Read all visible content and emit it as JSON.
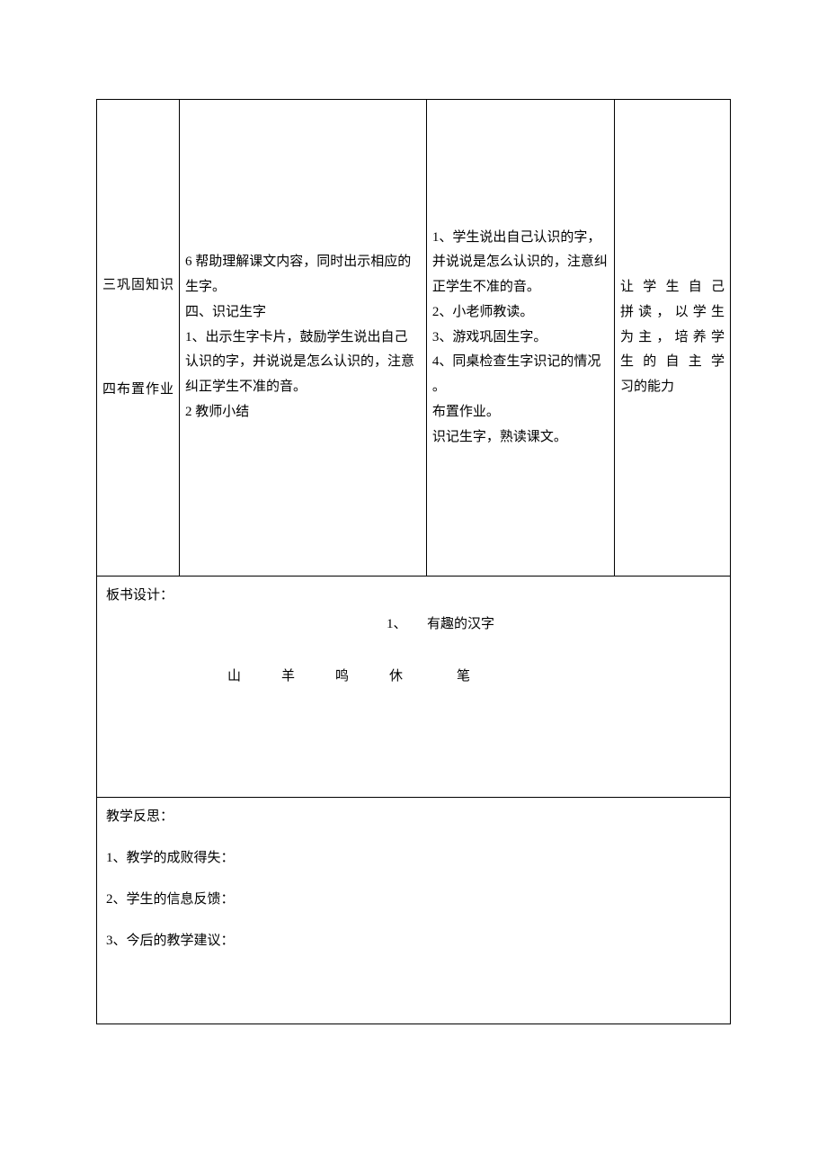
{
  "table": {
    "col1": {
      "section3": "三巩固知识",
      "section4": "四布置作业"
    },
    "col2": {
      "line1": "6 帮助理解课文内容，同时出示相应的生字。",
      "line2": "四、识记生字",
      "line3": "1、出示生字卡片，鼓励学生说出自己认识的字，并说说是怎么认识的，注意纠正学生不准的音。",
      "line4": "2 教师小结"
    },
    "col3": {
      "line1": "1、学生说出自己认识的字，并说说是怎么认识的，注意纠正学生不准的音。",
      "line2": "2、小老师教读。",
      "line3": "3、游戏巩固生字。",
      "line4": "4、同桌检查生字识记的情况",
      "line5": "。",
      "line6": "布置作业。",
      "line7": "识记生字，熟读课文。"
    },
    "col4": {
      "line1": "让学生自己",
      "line2": "拼读，以学生",
      "line3": "为主，培养学",
      "line4": "生的自主学",
      "line5": "习的能力"
    }
  },
  "board": {
    "title": "板书设计：",
    "subtitle": "1、　　有趣的汉字",
    "chars": "山　　　羊　　　鸣　　　休　　　　笔"
  },
  "reflection": {
    "title": "教学反思：",
    "item1": "1、教学的成败得失：",
    "item2": "2、学生的信息反馈：",
    "item3": "3、今后的教学建议："
  }
}
